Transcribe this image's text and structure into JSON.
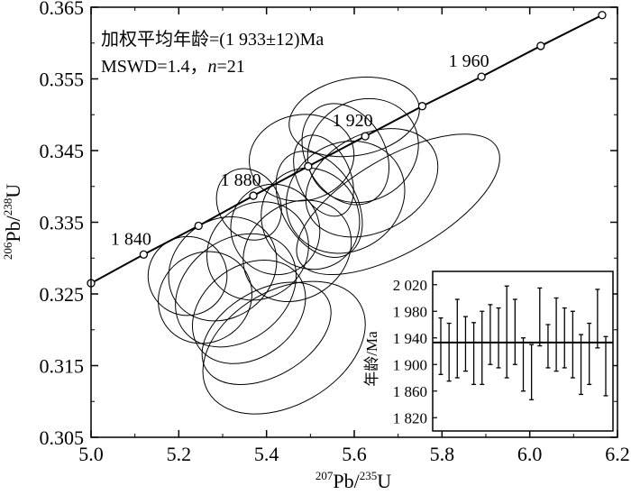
{
  "chart_data": {
    "type": "scatter",
    "subtype": "concordia-diagram",
    "xlim": [
      5.0,
      6.2
    ],
    "ylim": [
      0.305,
      0.365
    ],
    "x_ticks": [
      5.0,
      5.2,
      5.4,
      5.6,
      5.8,
      6.0,
      6.2
    ],
    "x_tick_labels": [
      "5.0",
      "5.2",
      "5.4",
      "5.6",
      "5.8",
      "6.0",
      "6.2"
    ],
    "y_ticks": [
      0.305,
      0.315,
      0.325,
      0.335,
      0.345,
      0.355,
      0.365
    ],
    "y_tick_labels": [
      "0.305",
      "0.315",
      "0.325",
      "0.335",
      "0.345",
      "0.355",
      "0.365"
    ],
    "xlabel": {
      "sup1": "207",
      "base1": "Pb/",
      "sup2": "235",
      "base2": "U"
    },
    "ylabel": {
      "sup1": "206",
      "base1": "Pb/",
      "sup2": "238",
      "base2": "U"
    },
    "annotation_line1": "加权平均年龄=(1 933±12)Ma",
    "annotation_line2_prefix": "MSWD=1.4，",
    "annotation_line2_n": "n",
    "annotation_line2_suffix": "=21",
    "concordia": {
      "points": [
        {
          "x": 5.0,
          "y": 0.3265
        },
        {
          "x": 5.12,
          "y": 0.3305
        },
        {
          "x": 5.245,
          "y": 0.3345
        },
        {
          "x": 5.37,
          "y": 0.3387
        },
        {
          "x": 5.495,
          "y": 0.3428
        },
        {
          "x": 5.625,
          "y": 0.347
        },
        {
          "x": 5.755,
          "y": 0.3512
        },
        {
          "x": 5.89,
          "y": 0.3553
        },
        {
          "x": 6.025,
          "y": 0.3596
        },
        {
          "x": 6.165,
          "y": 0.3639
        }
      ],
      "labels": [
        {
          "text": "1 840",
          "at": 1
        },
        {
          "text": "1 880",
          "at": 3
        },
        {
          "text": "1 920",
          "at": 5
        },
        {
          "text": "1 960",
          "at": 7
        }
      ]
    },
    "ellipses": [
      {
        "cx": 5.22,
        "cy": 0.3275,
        "rx": 0.09,
        "ry": 0.0055,
        "angle": -35
      },
      {
        "cx": 5.26,
        "cy": 0.3245,
        "rx": 0.11,
        "ry": 0.0062,
        "angle": -38
      },
      {
        "cx": 5.3,
        "cy": 0.3285,
        "rx": 0.13,
        "ry": 0.0068,
        "angle": -38
      },
      {
        "cx": 5.33,
        "cy": 0.3255,
        "rx": 0.15,
        "ry": 0.007,
        "angle": -38
      },
      {
        "cx": 5.38,
        "cy": 0.331,
        "rx": 0.12,
        "ry": 0.0066,
        "angle": -36
      },
      {
        "cx": 5.36,
        "cy": 0.3225,
        "rx": 0.14,
        "ry": 0.0064,
        "angle": -36
      },
      {
        "cx": 5.44,
        "cy": 0.3175,
        "rx": 0.2,
        "ry": 0.008,
        "angle": -30
      },
      {
        "cx": 5.4,
        "cy": 0.3195,
        "rx": 0.16,
        "ry": 0.006,
        "angle": -30
      },
      {
        "cx": 5.36,
        "cy": 0.3375,
        "rx": 0.07,
        "ry": 0.0052,
        "angle": -30
      },
      {
        "cx": 5.42,
        "cy": 0.334,
        "rx": 0.1,
        "ry": 0.0064,
        "angle": -35
      },
      {
        "cx": 5.47,
        "cy": 0.331,
        "rx": 0.13,
        "ry": 0.0066,
        "angle": -35
      },
      {
        "cx": 5.5,
        "cy": 0.3355,
        "rx": 0.11,
        "ry": 0.0072,
        "angle": -32
      },
      {
        "cx": 5.53,
        "cy": 0.3415,
        "rx": 0.06,
        "ry": 0.006,
        "angle": -25
      },
      {
        "cx": 5.52,
        "cy": 0.3375,
        "rx": 0.085,
        "ry": 0.008,
        "angle": -30
      },
      {
        "cx": 5.48,
        "cy": 0.344,
        "rx": 0.12,
        "ry": 0.006,
        "angle": -10
      },
      {
        "cx": 5.58,
        "cy": 0.3445,
        "rx": 0.09,
        "ry": 0.0075,
        "angle": -30
      },
      {
        "cx": 5.58,
        "cy": 0.3385,
        "rx": 0.14,
        "ry": 0.0075,
        "angle": -33
      },
      {
        "cx": 5.62,
        "cy": 0.345,
        "rx": 0.13,
        "ry": 0.007,
        "angle": -30
      },
      {
        "cx": 5.64,
        "cy": 0.3405,
        "rx": 0.16,
        "ry": 0.0068,
        "angle": -28
      },
      {
        "cx": 5.6,
        "cy": 0.3497,
        "rx": 0.15,
        "ry": 0.0054,
        "angle": -10
      },
      {
        "cx": 5.7,
        "cy": 0.3375,
        "rx": 0.26,
        "ry": 0.0066,
        "angle": -30
      }
    ],
    "inset": {
      "ylabel": "年龄/Ma",
      "ylim": [
        1800,
        2040
      ],
      "y_ticks": [
        1820,
        1860,
        1900,
        1940,
        1980,
        2020
      ],
      "y_tick_labels": [
        "1 820",
        "1 860",
        "1 900",
        "1 940",
        "1 980",
        "2 020"
      ],
      "weighted_mean": 1933,
      "bars": [
        {
          "low": 1885,
          "high": 1970
        },
        {
          "low": 1875,
          "high": 1962
        },
        {
          "low": 1880,
          "high": 1998
        },
        {
          "low": 1890,
          "high": 1972
        },
        {
          "low": 1870,
          "high": 1963
        },
        {
          "low": 1870,
          "high": 1980
        },
        {
          "low": 1900,
          "high": 1990
        },
        {
          "low": 1895,
          "high": 1985
        },
        {
          "low": 1880,
          "high": 2018
        },
        {
          "low": 1900,
          "high": 1998
        },
        {
          "low": 1860,
          "high": 1940
        },
        {
          "low": 1847,
          "high": 1930
        },
        {
          "low": 1928,
          "high": 2015
        },
        {
          "low": 1895,
          "high": 1960
        },
        {
          "low": 1890,
          "high": 2000
        },
        {
          "low": 1895,
          "high": 1985
        },
        {
          "low": 1880,
          "high": 1980
        },
        {
          "low": 1855,
          "high": 1945
        },
        {
          "low": 1870,
          "high": 1962
        },
        {
          "low": 1925,
          "high": 2013
        },
        {
          "low": 1853,
          "high": 1942
        }
      ]
    }
  }
}
